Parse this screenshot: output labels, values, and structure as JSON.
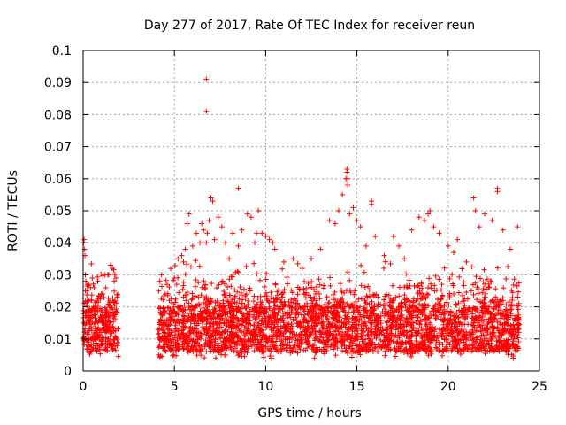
{
  "chart_data": {
    "type": "scatter",
    "title": "Day 277 of 2017, Rate Of TEC Index for receiver reun",
    "xlabel": "GPS time / hours",
    "ylabel": "ROTI / TECUs",
    "xlim": [
      0,
      25
    ],
    "ylim": [
      0,
      0.1
    ],
    "x_ticks": [
      "0",
      "5",
      "10",
      "15",
      "20",
      "25"
    ],
    "y_ticks": [
      "0",
      "0.01",
      "0.02",
      "0.03",
      "0.04",
      "0.05",
      "0.06",
      "0.07",
      "0.08",
      "0.09",
      "0.1"
    ],
    "grid": true,
    "marker": "plus",
    "color": "#ff0000",
    "coverage": {
      "segments": [
        [
          0.0,
          1.95
        ],
        [
          4.1,
          23.9
        ]
      ],
      "baseline_range": [
        0.006,
        0.02
      ],
      "typical_upper": [
        0.02,
        0.035
      ]
    },
    "series": [
      {
        "x": [
          0.02,
          0.05,
          0.08,
          0.1,
          0.12,
          0.15,
          0.2,
          0.25,
          0.3,
          0.4,
          0.5,
          0.6,
          0.8,
          1.0,
          1.2,
          1.4,
          1.5,
          1.6,
          1.7,
          1.8,
          4.2,
          4.3,
          4.5,
          4.6,
          4.8,
          5.0,
          5.2,
          5.4,
          5.5,
          5.6,
          5.7,
          5.8,
          6.0,
          6.2,
          6.4,
          6.5,
          6.6,
          6.75,
          6.8,
          6.9,
          7.0,
          7.1,
          7.2,
          7.4,
          7.6,
          7.8,
          8.0,
          8.2,
          8.5,
          8.7,
          9.0,
          9.2,
          9.4,
          9.5,
          9.6,
          9.8,
          10.0,
          10.2,
          10.4,
          10.5,
          11.0,
          11.5,
          12.0,
          12.5,
          13.0,
          13.5,
          13.8,
          14.0,
          14.2,
          14.4,
          14.45,
          14.5,
          14.6,
          14.8,
          15.0,
          15.2,
          15.5,
          15.8,
          16.0,
          16.5,
          17.0,
          17.3,
          17.6,
          18.0,
          18.4,
          18.7,
          19.0,
          19.2,
          19.5,
          20.0,
          20.3,
          20.5,
          21.0,
          21.4,
          21.5,
          21.7,
          22.0,
          22.4,
          22.7,
          23.0,
          23.4,
          23.8,
          6.75,
          6.75,
          8.5,
          14.45,
          14.5,
          22.7,
          15.8,
          18.9
        ],
        "y": [
          0.04,
          0.041,
          0.038,
          0.036,
          0.03,
          0.028,
          0.025,
          0.027,
          0.022,
          0.026,
          0.029,
          0.026,
          0.028,
          0.024,
          0.03,
          0.03,
          0.033,
          0.032,
          0.028,
          0.029,
          0.028,
          0.03,
          0.024,
          0.027,
          0.032,
          0.029,
          0.035,
          0.036,
          0.034,
          0.038,
          0.046,
          0.049,
          0.039,
          0.043,
          0.04,
          0.046,
          0.044,
          0.04,
          0.043,
          0.047,
          0.054,
          0.053,
          0.041,
          0.048,
          0.045,
          0.04,
          0.035,
          0.043,
          0.039,
          0.044,
          0.049,
          0.048,
          0.04,
          0.043,
          0.05,
          0.043,
          0.042,
          0.041,
          0.04,
          0.038,
          0.034,
          0.035,
          0.032,
          0.035,
          0.038,
          0.047,
          0.046,
          0.05,
          0.055,
          0.06,
          0.062,
          0.058,
          0.049,
          0.051,
          0.047,
          0.045,
          0.039,
          0.052,
          0.042,
          0.036,
          0.042,
          0.039,
          0.035,
          0.044,
          0.048,
          0.047,
          0.05,
          0.045,
          0.043,
          0.039,
          0.037,
          0.041,
          0.034,
          0.054,
          0.05,
          0.045,
          0.049,
          0.047,
          0.056,
          0.044,
          0.038,
          0.045,
          0.091,
          0.081,
          0.057,
          0.063,
          0.06,
          0.057,
          0.053,
          0.049
        ]
      }
    ]
  }
}
